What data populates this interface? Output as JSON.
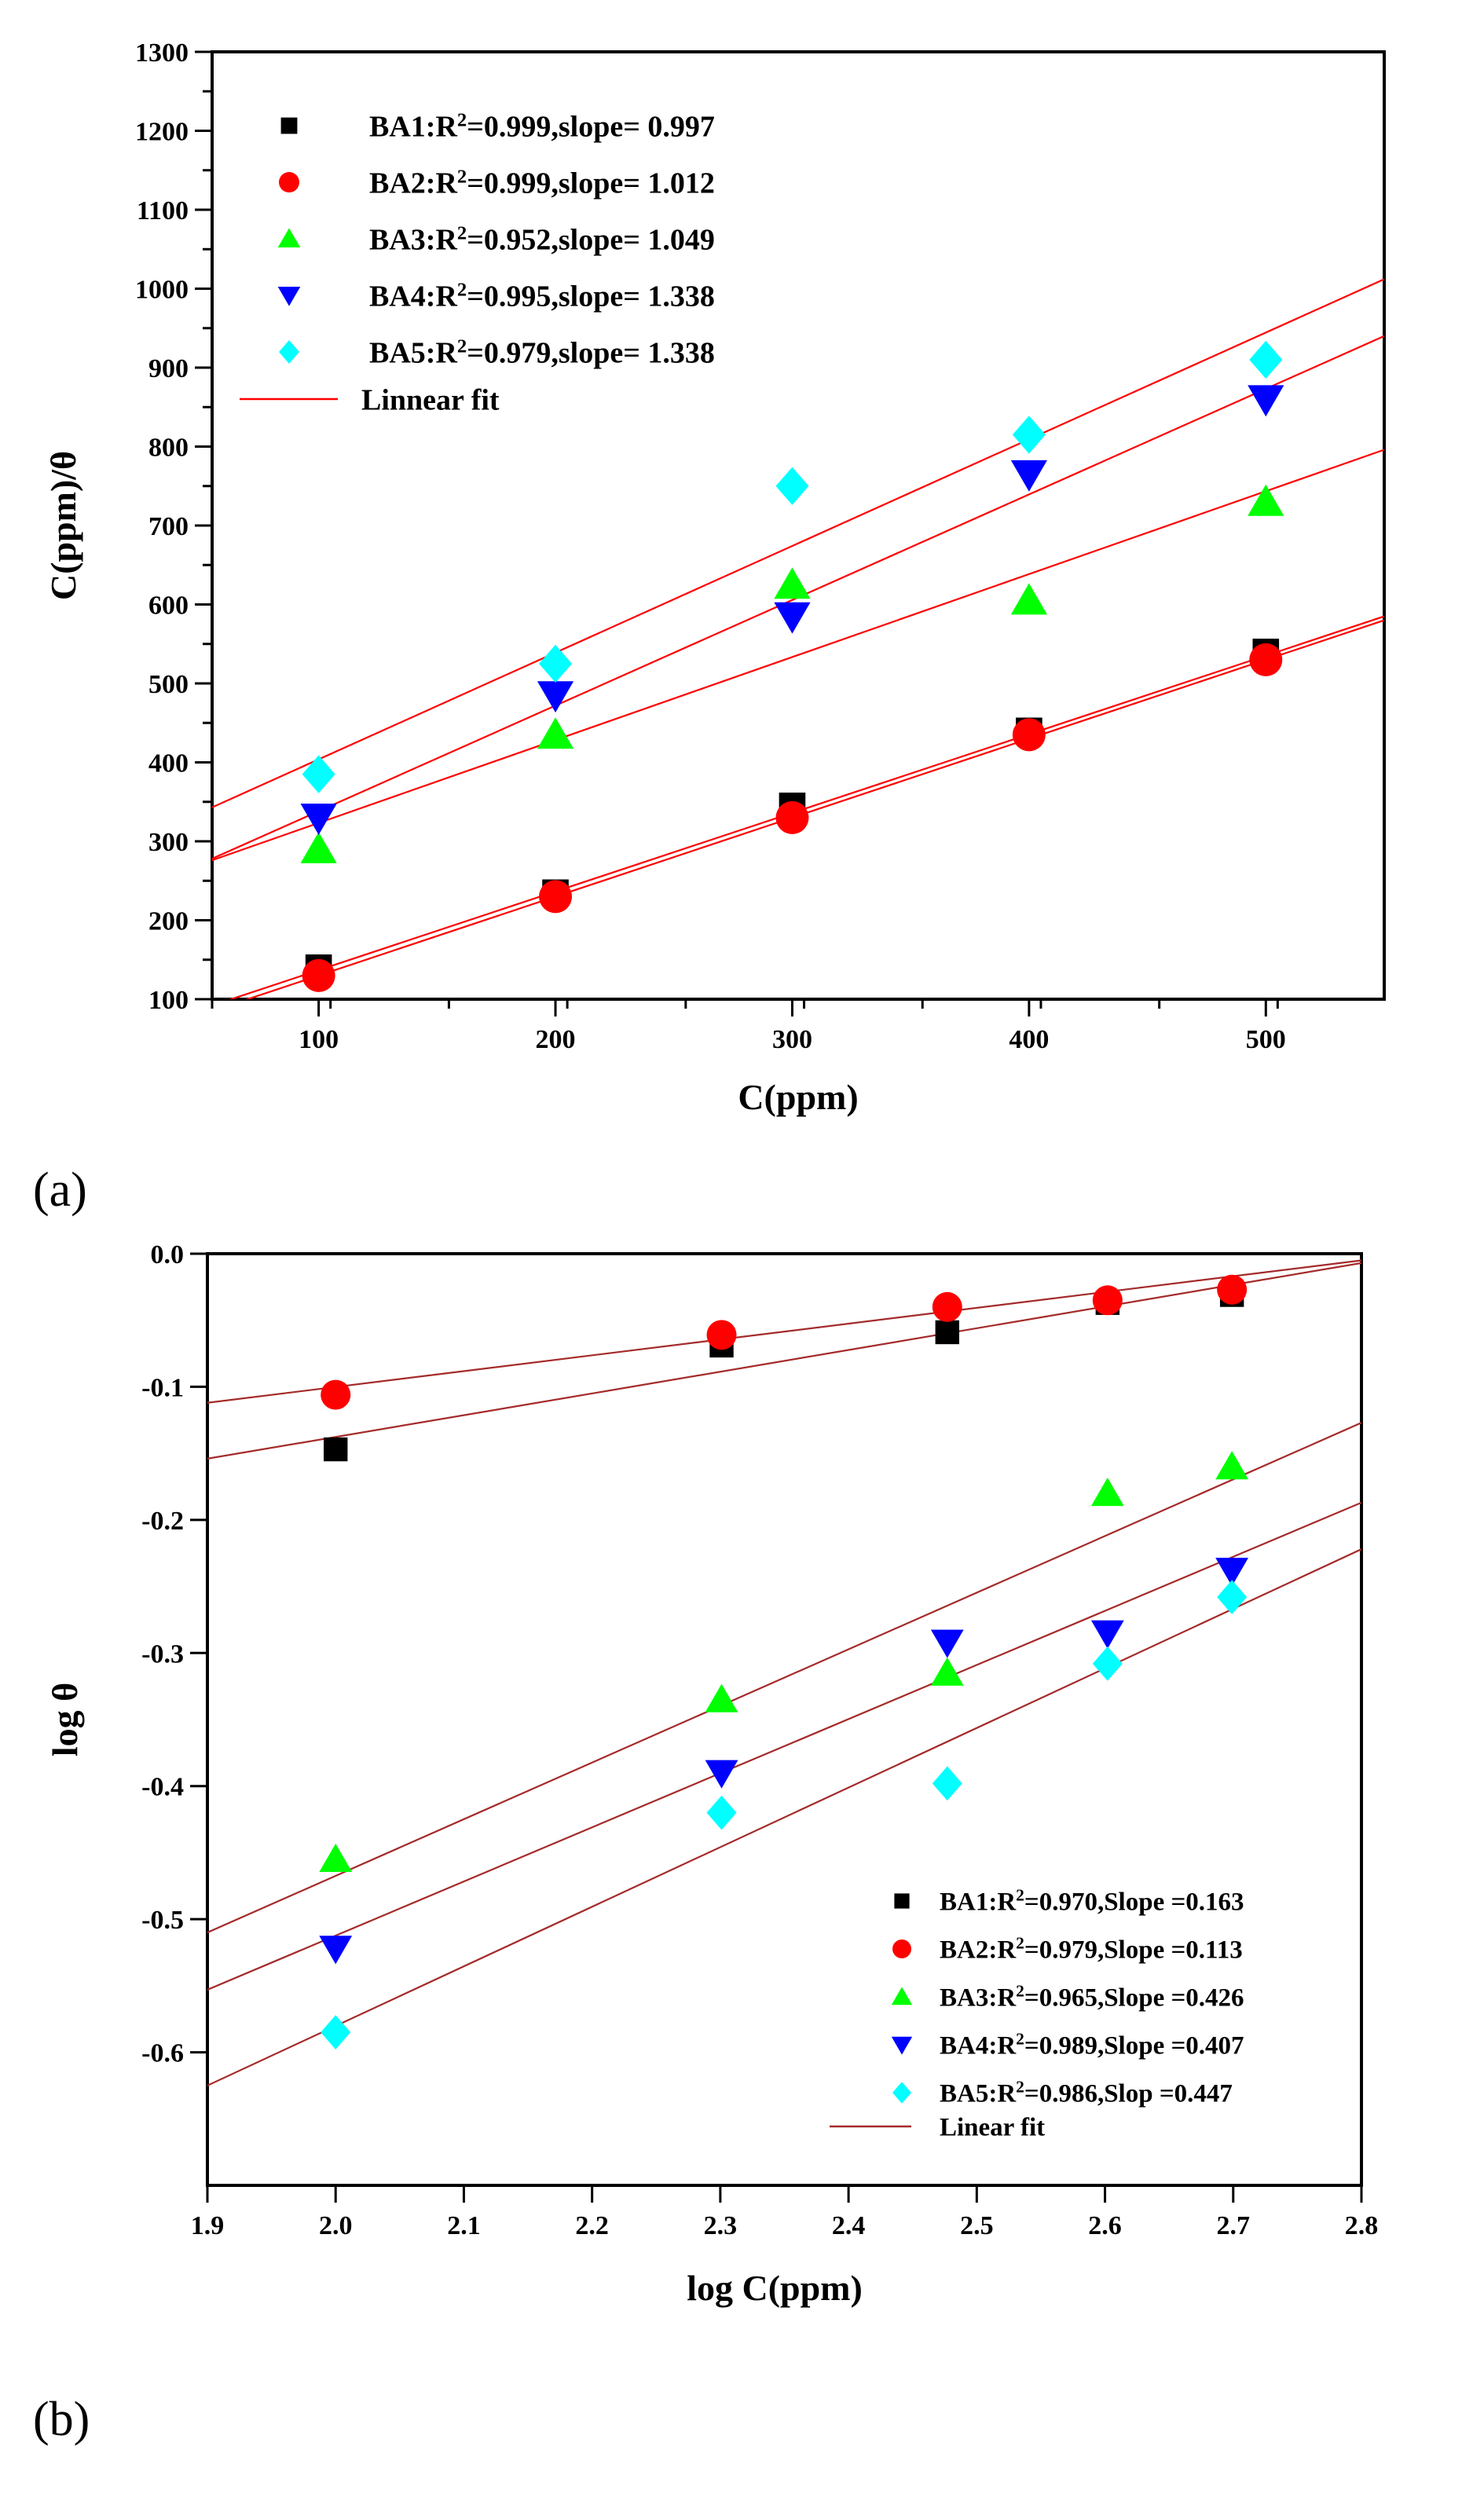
{
  "chart_data": [
    {
      "panel_label": "(a)",
      "type": "scatter",
      "xlabel": "C(ppm)",
      "ylabel": "C(ppm)/θ",
      "xlim": [
        55,
        550
      ],
      "ylim": [
        100,
        1300
      ],
      "xticks": [
        100,
        200,
        300,
        400,
        500
      ],
      "yticks": [
        100,
        200,
        300,
        400,
        500,
        600,
        700,
        800,
        900,
        1000,
        1100,
        1200,
        1300
      ],
      "x": [
        100,
        200,
        300,
        400,
        500
      ],
      "series": [
        {
          "name": "BA1",
          "r2": "0.999",
          "slope_label": "slope= 0.997",
          "marker": "square",
          "color": "#000000",
          "values": [
            140,
            235,
            345,
            440,
            540
          ],
          "fit": {
            "x0": 55,
            "y0": 92,
            "x1": 550,
            "y1": 585
          }
        },
        {
          "name": "BA2",
          "r2": "0.999",
          "slope_label": "slope= 1.012",
          "marker": "circle",
          "color": "#ff0000",
          "values": [
            130,
            230,
            330,
            435,
            530
          ],
          "fit": {
            "x0": 55,
            "y0": 85,
            "x1": 550,
            "y1": 580
          }
        },
        {
          "name": "BA3",
          "r2": "0.952",
          "slope_label": "slope= 1.049",
          "marker": "triangle-up",
          "color": "#00ff00",
          "values": [
            290,
            435,
            625,
            605,
            730
          ],
          "fit": {
            "x0": 55,
            "y0": 276,
            "x1": 550,
            "y1": 796
          }
        },
        {
          "name": "BA4",
          "r2": "0.995",
          "slope_label": "slope= 1.338",
          "marker": "triangle-down",
          "color": "#0000ff",
          "values": [
            330,
            485,
            585,
            765,
            860
          ],
          "fit": {
            "x0": 55,
            "y0": 278,
            "x1": 550,
            "y1": 940
          }
        },
        {
          "name": "BA5",
          "r2": "0.979",
          "slope_label": "slope= 1.338",
          "marker": "diamond",
          "color": "#00ffff",
          "values": [
            385,
            525,
            750,
            815,
            910
          ],
          "fit": {
            "x0": 55,
            "y0": 343,
            "x1": 550,
            "y1": 1012
          }
        }
      ],
      "fit_legend": "Linnear fit",
      "fit_color": "#ff0000",
      "legend_position": "top-left"
    },
    {
      "panel_label": "(b)",
      "type": "scatter",
      "xlabel": "log C(ppm)",
      "ylabel": "log θ",
      "xlim": [
        1.9,
        2.8
      ],
      "ylim": [
        -0.7,
        0.0
      ],
      "xticks": [
        "1.9",
        "2.0",
        "2.1",
        "2.2",
        "2.3",
        "2.4",
        "2.5",
        "2.6",
        "2.7",
        "2.8"
      ],
      "yticks": [
        "0.0",
        "-0.1",
        "-0.2",
        "-0.3",
        "-0.4",
        "-0.5",
        "-0.6"
      ],
      "x": [
        2.0,
        2.301,
        2.477,
        2.602,
        2.699
      ],
      "series": [
        {
          "name": "BA1",
          "r2": "0.970",
          "slope_label": "Slope =0.163",
          "marker": "square",
          "color": "#000000",
          "values": [
            -0.147,
            -0.069,
            -0.059,
            -0.037,
            -0.031
          ],
          "fit": {
            "x0": 1.9,
            "y0": -0.154,
            "x1": 2.8,
            "y1": -0.007
          }
        },
        {
          "name": "BA2",
          "r2": "0.979",
          "slope_label": "Slope =0.113",
          "marker": "circle",
          "color": "#ff0000",
          "values": [
            -0.106,
            -0.061,
            -0.04,
            -0.035,
            -0.027
          ],
          "fit": {
            "x0": 1.9,
            "y0": -0.112,
            "x1": 2.8,
            "y1": -0.005
          }
        },
        {
          "name": "BA3",
          "r2": "0.965",
          "slope_label": "Slope =0.426",
          "marker": "triangle-up",
          "color": "#00ff00",
          "values": [
            -0.455,
            -0.335,
            -0.315,
            -0.18,
            -0.16
          ],
          "fit": {
            "x0": 1.9,
            "y0": -0.51,
            "x1": 2.8,
            "y1": -0.127
          }
        },
        {
          "name": "BA4",
          "r2": "0.989",
          "slope_label": "Slope =0.407",
          "marker": "triangle-down",
          "color": "#0000ff",
          "values": [
            -0.522,
            -0.39,
            -0.292,
            -0.285,
            -0.238
          ],
          "fit": {
            "x0": 1.9,
            "y0": -0.553,
            "x1": 2.8,
            "y1": -0.187
          }
        },
        {
          "name": "BA5",
          "r2": "0.986",
          "slope_label": "Slop =0.447",
          "marker": "diamond",
          "color": "#00ffff",
          "values": [
            -0.585,
            -0.42,
            -0.398,
            -0.308,
            -0.258
          ],
          "fit": {
            "x0": 1.9,
            "y0": -0.625,
            "x1": 2.8,
            "y1": -0.222
          }
        }
      ],
      "fit_legend": "Linear fit",
      "fit_color": "#a52a2a",
      "legend_position": "bottom-right"
    }
  ]
}
